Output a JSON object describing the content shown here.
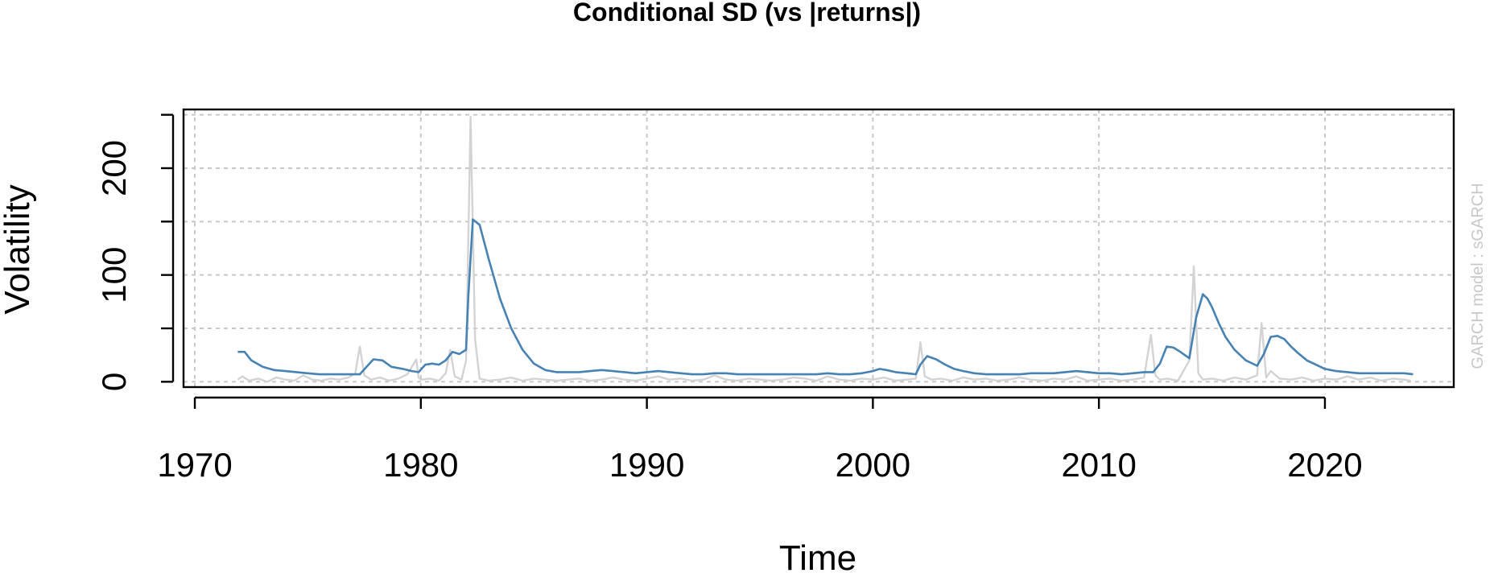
{
  "chart_data": {
    "type": "line",
    "title": "Conditional SD (vs |returns|)",
    "xlabel": "Time",
    "ylabel": "Volatility",
    "side_note": "GARCH model :  sGARCH",
    "xlim": [
      1969.5,
      2025.7
    ],
    "ylim": [
      -5,
      255
    ],
    "x_ticks": [
      1970,
      1980,
      1990,
      2000,
      2010,
      2020
    ],
    "y_ticks": [
      0,
      100,
      200
    ],
    "grid_x": [
      1970,
      1980,
      1990,
      2000,
      2010,
      2020
    ],
    "grid_y": [
      0,
      50,
      100,
      150,
      200,
      250
    ],
    "grid": true,
    "colors": {
      "sd": "#4682b4",
      "abs_returns": "#d3d3d3",
      "grid": "#c8c8c8",
      "frame": "#000000"
    },
    "series": [
      {
        "key": "abs_returns",
        "x": [
          1971.9,
          1972.1,
          1972.4,
          1972.8,
          1973.2,
          1973.6,
          1974.0,
          1974.4,
          1974.8,
          1975.2,
          1975.6,
          1976.0,
          1976.4,
          1976.8,
          1977.1,
          1977.3,
          1977.5,
          1977.8,
          1978.2,
          1978.6,
          1979.0,
          1979.4,
          1979.8,
          1979.9,
          1980.0,
          1980.4,
          1980.8,
          1981.1,
          1981.3,
          1981.5,
          1981.8,
          1982.0,
          1982.2,
          1982.4,
          1982.6,
          1983.0,
          1983.5,
          1984.0,
          1984.5,
          1985.0,
          1985.5,
          1986.0,
          1986.5,
          1987.0,
          1987.5,
          1988.0,
          1988.5,
          1989.0,
          1989.5,
          1990.0,
          1990.5,
          1991.0,
          1991.5,
          1992.0,
          1992.5,
          1993.0,
          1993.5,
          1994.0,
          1994.5,
          1995.0,
          1995.5,
          1996.0,
          1996.5,
          1997.0,
          1997.5,
          1998.0,
          1998.5,
          1999.0,
          1999.5,
          2000.0,
          2000.5,
          2001.0,
          2001.5,
          2001.9,
          2002.1,
          2002.3,
          2002.6,
          2003.0,
          2003.5,
          2004.0,
          2004.5,
          2005.0,
          2005.5,
          2006.0,
          2006.5,
          2007.0,
          2007.5,
          2008.0,
          2008.5,
          2009.0,
          2009.5,
          2010.0,
          2010.5,
          2011.0,
          2011.5,
          2012.0,
          2012.3,
          2012.5,
          2012.7,
          2013.0,
          2013.5,
          2014.0,
          2014.2,
          2014.4,
          2014.6,
          2015.0,
          2015.5,
          2016.0,
          2016.5,
          2017.0,
          2017.2,
          2017.4,
          2017.6,
          2018.0,
          2018.5,
          2019.0,
          2019.5,
          2020.0,
          2020.5,
          2021.0,
          2021.5,
          2022.0,
          2022.5,
          2023.0,
          2023.5,
          2023.8
        ],
        "values": [
          2,
          5,
          1,
          3,
          0,
          4,
          2,
          1,
          6,
          2,
          1,
          3,
          2,
          4,
          8,
          33,
          6,
          2,
          4,
          1,
          3,
          7,
          21,
          4,
          2,
          3,
          1,
          8,
          30,
          5,
          2,
          20,
          248,
          40,
          3,
          1,
          2,
          4,
          1,
          3,
          2,
          1,
          2,
          3,
          1,
          2,
          4,
          2,
          1,
          3,
          5,
          2,
          3,
          1,
          2,
          6,
          2,
          1,
          3,
          2,
          1,
          2,
          4,
          3,
          1,
          5,
          2,
          1,
          3,
          2,
          4,
          1,
          2,
          3,
          37,
          5,
          2,
          3,
          1,
          4,
          2,
          3,
          1,
          2,
          4,
          2,
          1,
          3,
          2,
          5,
          1,
          2,
          3,
          1,
          2,
          4,
          44,
          6,
          2,
          3,
          1,
          20,
          108,
          8,
          2,
          3,
          1,
          4,
          2,
          6,
          55,
          4,
          10,
          3,
          2,
          4,
          1,
          3,
          2,
          5,
          2,
          4,
          1,
          3,
          2,
          1
        ]
      },
      {
        "key": "sd",
        "x": [
          1971.9,
          1972.2,
          1972.5,
          1973.0,
          1973.5,
          1974.0,
          1974.5,
          1975.0,
          1975.5,
          1976.0,
          1976.5,
          1977.0,
          1977.3,
          1977.6,
          1977.9,
          1978.3,
          1978.7,
          1979.2,
          1979.6,
          1979.9,
          1980.2,
          1980.5,
          1980.8,
          1981.1,
          1981.4,
          1981.7,
          1982.0,
          1982.1,
          1982.3,
          1982.6,
          1983.0,
          1983.5,
          1984.0,
          1984.5,
          1985.0,
          1985.5,
          1986.0,
          1986.5,
          1987.0,
          1987.5,
          1988.0,
          1988.5,
          1989.0,
          1989.5,
          1990.0,
          1990.5,
          1991.0,
          1991.5,
          1992.0,
          1992.5,
          1993.0,
          1993.5,
          1994.0,
          1994.5,
          1995.0,
          1995.5,
          1996.0,
          1996.5,
          1997.0,
          1997.5,
          1998.0,
          1998.5,
          1999.0,
          1999.5,
          2000.0,
          2000.3,
          2000.6,
          2001.0,
          2001.5,
          2001.9,
          2002.1,
          2002.4,
          2002.8,
          2003.2,
          2003.6,
          2004.0,
          2004.5,
          2005.0,
          2005.5,
          2006.0,
          2006.5,
          2007.0,
          2007.5,
          2008.0,
          2008.5,
          2009.0,
          2009.5,
          2010.0,
          2010.5,
          2011.0,
          2011.5,
          2012.0,
          2012.4,
          2012.7,
          2013.0,
          2013.3,
          2013.6,
          2014.0,
          2014.3,
          2014.6,
          2014.8,
          2015.0,
          2015.3,
          2015.6,
          2016.0,
          2016.5,
          2017.0,
          2017.3,
          2017.6,
          2017.9,
          2018.2,
          2018.5,
          2018.8,
          2019.2,
          2019.6,
          2020.0,
          2020.5,
          2021.0,
          2021.5,
          2022.0,
          2022.5,
          2023.0,
          2023.5,
          2023.9
        ],
        "values": [
          28,
          28,
          20,
          14,
          11,
          10,
          9,
          8,
          7,
          7,
          7,
          7,
          7,
          14,
          21,
          20,
          14,
          12,
          10,
          9,
          16,
          17,
          16,
          20,
          28,
          26,
          30,
          80,
          152,
          147,
          115,
          78,
          50,
          30,
          17,
          11,
          9,
          9,
          9,
          10,
          11,
          10,
          9,
          8,
          9,
          10,
          9,
          8,
          7,
          7,
          8,
          8,
          7,
          7,
          7,
          7,
          7,
          7,
          7,
          7,
          8,
          7,
          7,
          8,
          10,
          12,
          11,
          9,
          8,
          7,
          16,
          24,
          21,
          16,
          12,
          10,
          8,
          7,
          7,
          7,
          7,
          8,
          8,
          8,
          9,
          10,
          9,
          8,
          8,
          7,
          8,
          9,
          9,
          17,
          33,
          32,
          28,
          22,
          60,
          82,
          78,
          70,
          55,
          42,
          30,
          20,
          15,
          26,
          42,
          43,
          40,
          33,
          27,
          20,
          16,
          12,
          10,
          9,
          8,
          8,
          8,
          8,
          8,
          7
        ]
      }
    ]
  }
}
